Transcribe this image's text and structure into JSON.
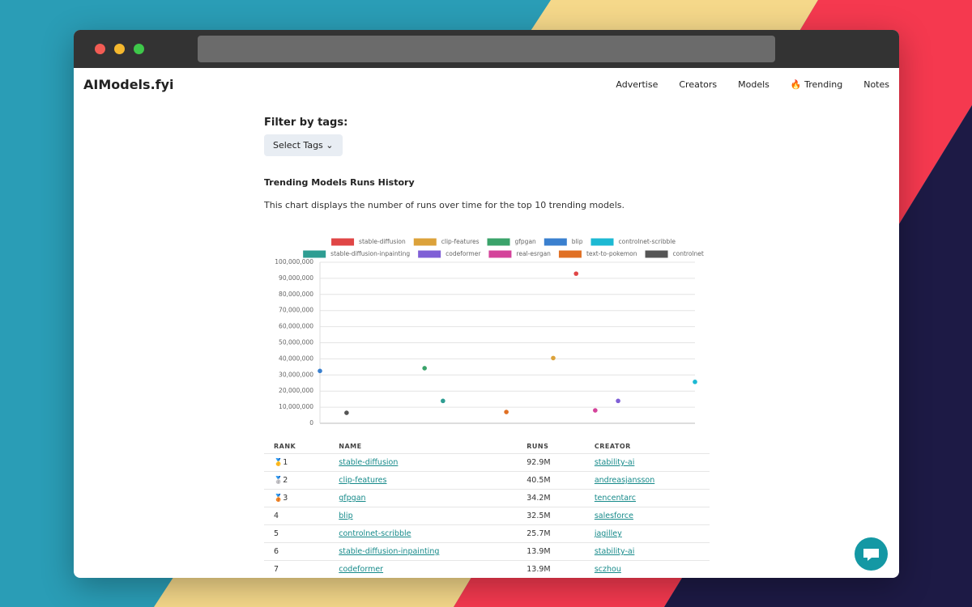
{
  "header": {
    "logo": "AIModels.fyi",
    "nav": [
      "Advertise",
      "Creators",
      "Models",
      "🔥 Trending",
      "Notes"
    ]
  },
  "filter": {
    "title": "Filter by tags:",
    "button": "Select Tags"
  },
  "section": {
    "title": "Trending Models Runs History",
    "description": "This chart displays the number of runs over time for the top 10 trending models."
  },
  "chart_data": {
    "type": "scatter",
    "ylim": [
      0,
      100000000
    ],
    "yticks": [
      0,
      {
        "value": 10000000,
        "label": "10,000,000"
      },
      {
        "value": 20000000,
        "label": "20,000,000"
      },
      {
        "value": 30000000,
        "label": "30,000,000"
      },
      {
        "value": 40000000,
        "label": "40,000,000"
      },
      {
        "value": 50000000,
        "label": "50,000,000"
      },
      {
        "value": 60000000,
        "label": "60,000,000"
      },
      {
        "value": 70000000,
        "label": "70,000,000"
      },
      {
        "value": 80000000,
        "label": "80,000,000"
      },
      {
        "value": 90000000,
        "label": "90,000,000"
      },
      {
        "value": 100000000,
        "label": "100,000,000"
      }
    ],
    "grid": true,
    "legend": "top",
    "series": [
      {
        "name": "stable-diffusion",
        "color": "#e04646",
        "values": [
          92900000
        ]
      },
      {
        "name": "clip-features",
        "color": "#dca23a",
        "values": [
          40500000
        ]
      },
      {
        "name": "gfpgan",
        "color": "#3aa36a",
        "values": [
          34200000
        ]
      },
      {
        "name": "blip",
        "color": "#3a80cf",
        "values": [
          32500000
        ]
      },
      {
        "name": "controlnet-scribble",
        "color": "#1db9d3",
        "values": [
          25700000
        ]
      },
      {
        "name": "stable-diffusion-inpainting",
        "color": "#2e9d92",
        "values": [
          13900000
        ]
      },
      {
        "name": "codeformer",
        "color": "#7f5fd6",
        "values": [
          13900000
        ]
      },
      {
        "name": "real-esrgan",
        "color": "#d4439a",
        "values": [
          8000000
        ]
      },
      {
        "name": "text-to-pokemon",
        "color": "#e07024",
        "values": [
          7000000
        ]
      },
      {
        "name": "controlnet",
        "color": "#555555",
        "values": [
          6500000
        ]
      }
    ]
  },
  "table": {
    "headers": [
      "RANK",
      "NAME",
      "RUNS",
      "CREATOR"
    ],
    "rows": [
      {
        "medal": "🥇",
        "rank": "1",
        "name": "stable-diffusion",
        "runs": "92.9M",
        "creator": "stability-ai"
      },
      {
        "medal": "🥈",
        "rank": "2",
        "name": "clip-features",
        "runs": "40.5M",
        "creator": "andreasjansson"
      },
      {
        "medal": "🥉",
        "rank": "3",
        "name": "gfpgan",
        "runs": "34.2M",
        "creator": "tencentarc"
      },
      {
        "rank": "4",
        "name": "blip",
        "runs": "32.5M",
        "creator": "salesforce"
      },
      {
        "rank": "5",
        "name": "controlnet-scribble",
        "runs": "25.7M",
        "creator": "jagilley"
      },
      {
        "rank": "6",
        "name": "stable-diffusion-inpainting",
        "runs": "13.9M",
        "creator": "stability-ai"
      },
      {
        "rank": "7",
        "name": "codeformer",
        "runs": "13.9M",
        "creator": "sczhou"
      }
    ]
  }
}
